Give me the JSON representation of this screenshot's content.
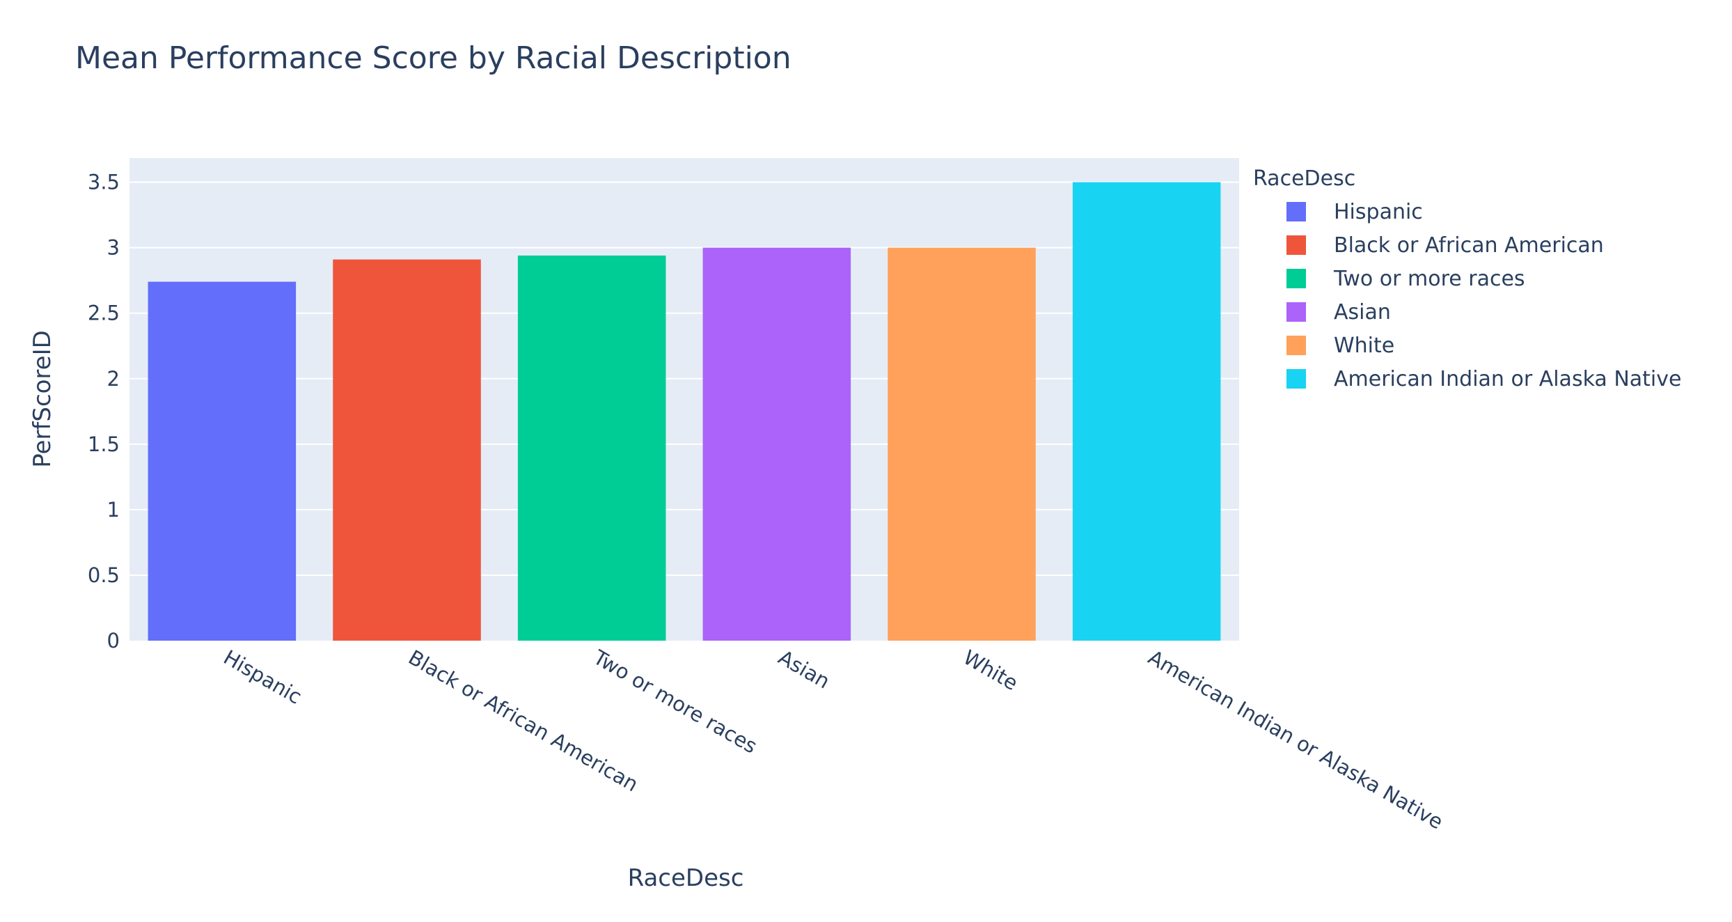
{
  "chart_data": {
    "type": "bar",
    "title": "Mean Performance Score by Racial Description",
    "xlabel": "RaceDesc",
    "ylabel": "PerfScoreID",
    "categories": [
      "Hispanic",
      "Black or African American",
      "Two or more races",
      "Asian",
      "White",
      "American Indian or Alaska Native"
    ],
    "series": [
      {
        "name": "Hispanic",
        "color": "#636efa",
        "values": [
          2.74,
          null,
          null,
          null,
          null,
          null
        ]
      },
      {
        "name": "Black or African American",
        "color": "#ef553b",
        "values": [
          null,
          2.91,
          null,
          null,
          null,
          null
        ]
      },
      {
        "name": "Two or more races",
        "color": "#00cc96",
        "values": [
          null,
          null,
          2.94,
          null,
          null,
          null
        ]
      },
      {
        "name": "Asian",
        "color": "#ab63fa",
        "values": [
          null,
          null,
          null,
          3.0,
          null,
          null
        ]
      },
      {
        "name": "White",
        "color": "#ffa15a",
        "values": [
          null,
          null,
          null,
          null,
          3.0,
          null
        ]
      },
      {
        "name": "American Indian or Alaska Native",
        "color": "#19d3f3",
        "values": [
          null,
          null,
          null,
          null,
          null,
          3.5
        ]
      }
    ],
    "values": [
      2.74,
      2.91,
      2.94,
      3.0,
      3.0,
      3.5
    ],
    "ylim": [
      0,
      3.684
    ],
    "yticks": [
      0,
      0.5,
      1,
      1.5,
      2,
      2.5,
      3,
      3.5
    ],
    "ytick_labels": [
      "0",
      "0.5",
      "1",
      "1.5",
      "2",
      "2.5",
      "3",
      "3.5"
    ],
    "grid": true,
    "legend": {
      "title": "RaceDesc",
      "placement": "right"
    },
    "plot_background": "#e5ecf6",
    "gridline_color": "#ffffff"
  }
}
